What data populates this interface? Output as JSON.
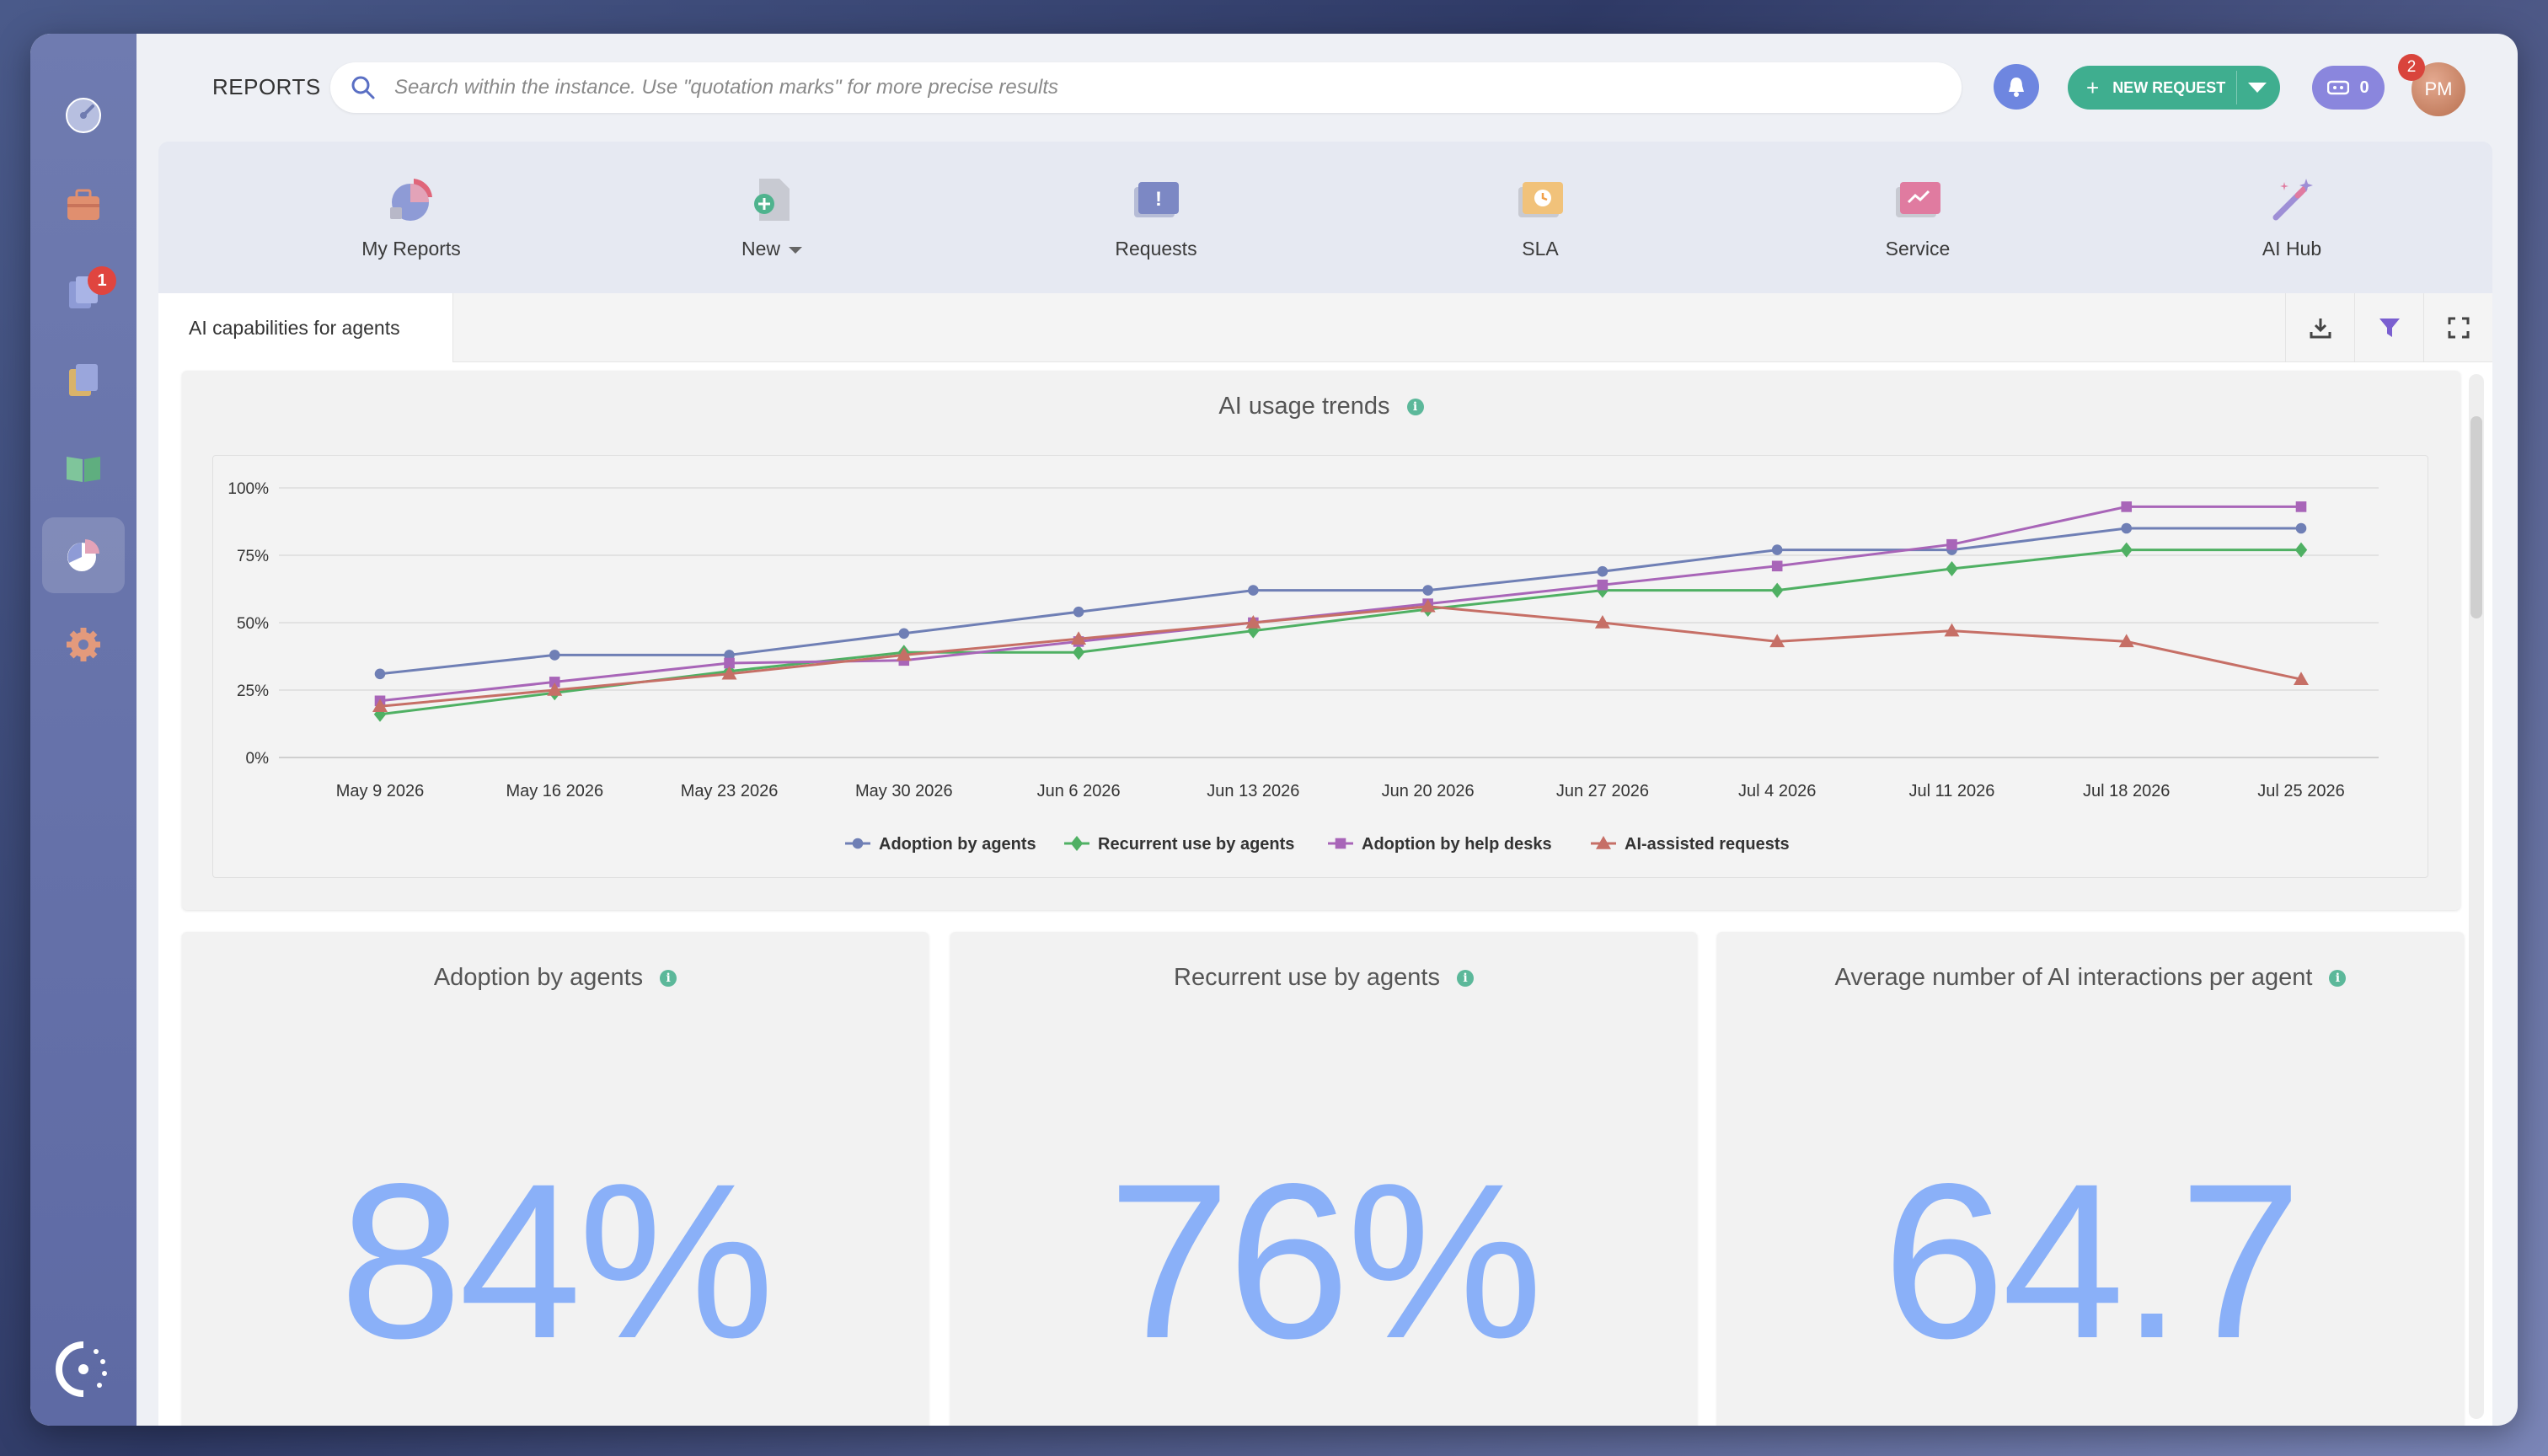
{
  "sidebar": {
    "items": [
      {
        "icon": "dashboard-icon"
      },
      {
        "icon": "briefcase-icon"
      },
      {
        "icon": "requests-icon",
        "badge": "1"
      },
      {
        "icon": "documents-icon"
      },
      {
        "icon": "knowledge-base-icon"
      },
      {
        "icon": "reports-icon",
        "active": true
      },
      {
        "icon": "settings-icon"
      }
    ],
    "logo": "app-logo-icon"
  },
  "header": {
    "section_title": "REPORTS",
    "search_placeholder": "Search within the instance. Use \"quotation marks\" for more precise results",
    "new_request_label": "NEW REQUEST",
    "chip_count": "0",
    "avatar_initials": "PM",
    "avatar_badge": "2"
  },
  "reports_nav": {
    "items": [
      {
        "label": "My Reports"
      },
      {
        "label": "New"
      },
      {
        "label": "Requests"
      },
      {
        "label": "SLA"
      },
      {
        "label": "Service"
      },
      {
        "label": "AI Hub"
      }
    ]
  },
  "tab": {
    "label": "AI capabilities for agents"
  },
  "colors": {
    "adoption_agents": "#6f7fb5",
    "recurrent_agents": "#4fb063",
    "adoption_helpdesks": "#a865b8",
    "ai_assisted": "#c66f66",
    "kpi_value": "#8ab0f8",
    "accent_green": "#3fae8f"
  },
  "usage_chart": {
    "title": "AI usage trends"
  },
  "chart_data": {
    "type": "line",
    "title": "AI usage trends",
    "x": [
      "May 9 2026",
      "May 16 2026",
      "May 23 2026",
      "May 30 2026",
      "Jun 6 2026",
      "Jun 13 2026",
      "Jun 20 2026",
      "Jun 27 2026",
      "Jul 4 2026",
      "Jul 11 2026",
      "Jul 18 2026",
      "Jul 25 2026"
    ],
    "yticks": [
      "0%",
      "25%",
      "50%",
      "75%",
      "100%"
    ],
    "ylim": [
      0,
      100
    ],
    "grid": true,
    "legend_position": "bottom",
    "series": [
      {
        "name": "Adoption by agents",
        "marker": "circle",
        "values": [
          31,
          38,
          38,
          46,
          54,
          62,
          62,
          69,
          77,
          77,
          85,
          85
        ]
      },
      {
        "name": "Recurrent use by agents",
        "marker": "diamond",
        "values": [
          16,
          24,
          32,
          39,
          39,
          47,
          55,
          62,
          62,
          70,
          77,
          77
        ]
      },
      {
        "name": "Adoption by help desks",
        "marker": "square",
        "values": [
          21,
          28,
          35,
          36,
          43,
          50,
          57,
          64,
          71,
          79,
          93,
          93
        ]
      },
      {
        "name": "AI-assisted requests",
        "marker": "triangle",
        "values": [
          19,
          25,
          31,
          38,
          44,
          50,
          56,
          50,
          43,
          47,
          43,
          29
        ]
      }
    ]
  },
  "kpis": [
    {
      "title": "Adoption by agents",
      "value": "84%"
    },
    {
      "title": "Recurrent use by agents",
      "value": "76%"
    },
    {
      "title": "Average number of AI interactions per agent",
      "value": "64.7"
    }
  ]
}
